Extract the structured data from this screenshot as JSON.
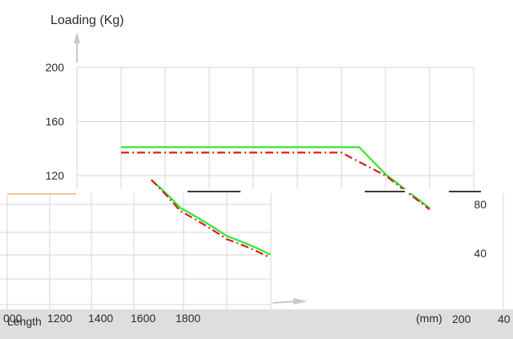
{
  "chart_data": {
    "type": "line",
    "ylabel": "Loading (Kg)",
    "xlabel_fragments": {
      "unit": "(mm)",
      "length": "Length"
    },
    "ylim_top": [
      110,
      200
    ],
    "ylim_bottom_right": [
      30,
      90
    ],
    "y_ticks_top": [
      "200",
      "160",
      "120"
    ],
    "y_ticks_bottom_right": [
      "80",
      "40"
    ],
    "x_ticks_bottom": [
      "000",
      "1200",
      "1400",
      "1600",
      "1800"
    ],
    "x_ticks_right": [
      "200",
      "40"
    ],
    "grid": true,
    "colors": {
      "green": "#2ee82e",
      "red": "#d81e1e",
      "grid": "#d6d6d6",
      "bottom_bar": "#dedede",
      "axis_arrow": "#c9c9c9"
    },
    "series": [
      {
        "color": "#2ee82e",
        "style": "solid",
        "top_panel_points": [
          [
            0,
            141
          ],
          [
            1,
            141
          ],
          [
            2,
            141
          ],
          [
            3,
            141
          ],
          [
            4,
            141
          ],
          [
            5,
            141
          ],
          [
            5.4,
            141
          ],
          [
            6,
            121
          ],
          [
            7,
            96
          ]
        ],
        "bottom_panel_points": [
          [
            1475,
            88
          ],
          [
            1600,
            70
          ],
          [
            1800,
            52
          ],
          [
            1990,
            40
          ]
        ]
      },
      {
        "color": "#d81e1e",
        "style": "dashed",
        "top_panel_points": [
          [
            0,
            137
          ],
          [
            1,
            137
          ],
          [
            2,
            137
          ],
          [
            3,
            137
          ],
          [
            4,
            137
          ],
          [
            5,
            137
          ],
          [
            5.0,
            137
          ],
          [
            6,
            120
          ],
          [
            7,
            95
          ]
        ],
        "bottom_panel_points": [
          [
            1475,
            88
          ],
          [
            1600,
            68
          ],
          [
            1800,
            50
          ],
          [
            1975,
            39
          ]
        ]
      }
    ]
  }
}
